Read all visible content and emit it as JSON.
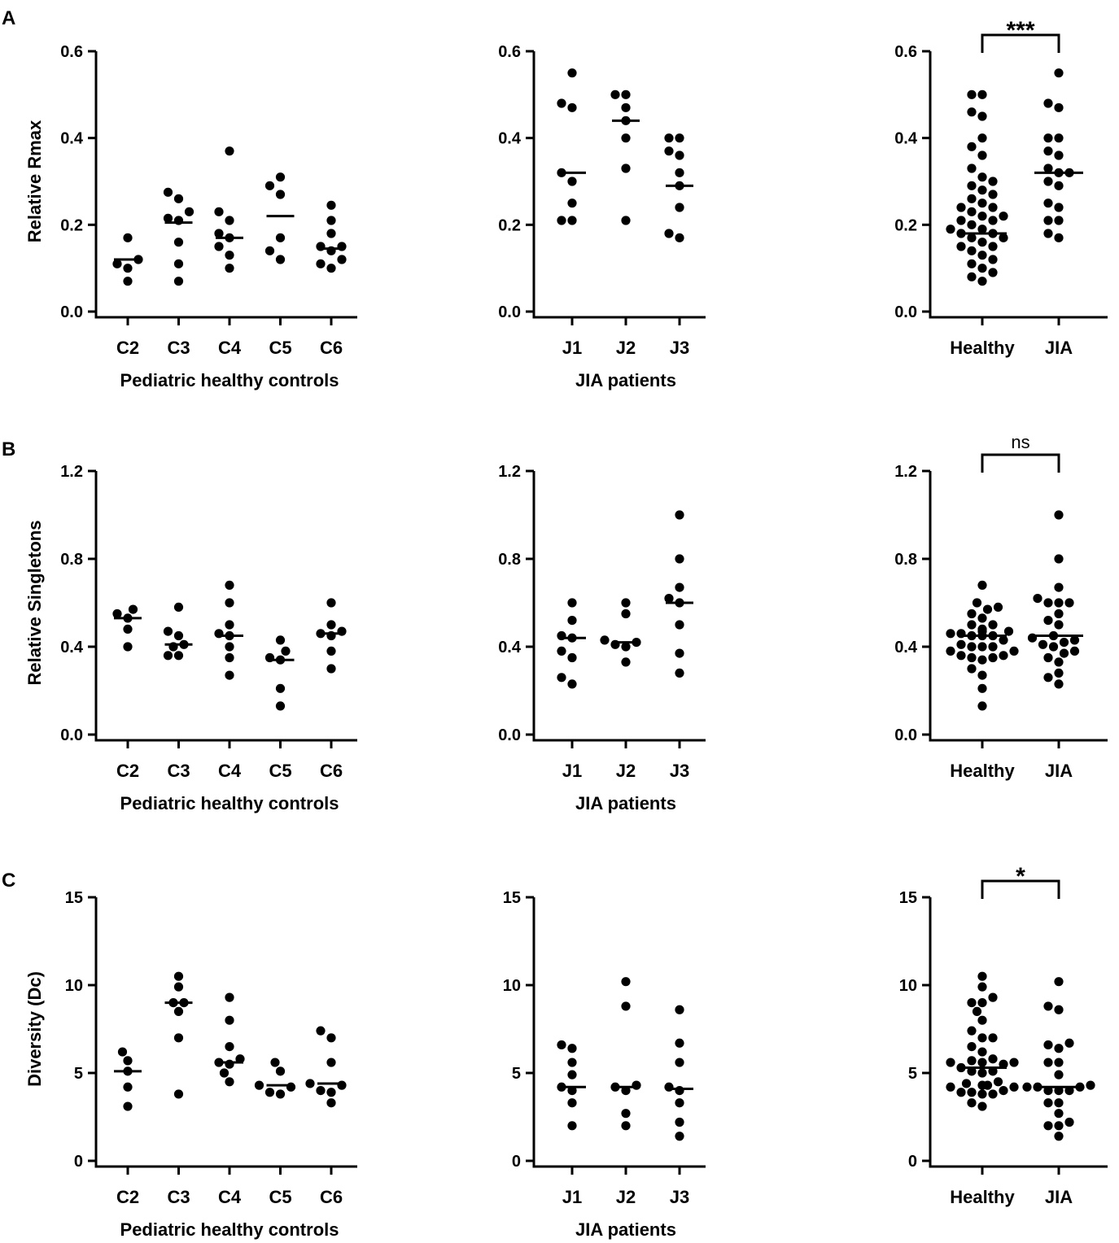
{
  "figure": {
    "panel_labels": [
      "A",
      "B",
      "C"
    ]
  },
  "chart_data": [
    {
      "id": "A1",
      "row": 0,
      "col": 0,
      "type": "scatter",
      "ylabel": "Relative Rmax",
      "xlabel": "Pediatric healthy controls",
      "ylim": [
        0,
        0.6
      ],
      "yticks": [
        0.0,
        0.2,
        0.4,
        0.6
      ],
      "ytick_labels": [
        "0.0",
        "0.2",
        "0.4",
        "0.6"
      ],
      "categories": [
        "C2",
        "C3",
        "C4",
        "C5",
        "C6"
      ],
      "groups": [
        {
          "name": "C2",
          "points": [
            0.17,
            0.12,
            0.11,
            0.1,
            0.07
          ],
          "median": 0.12
        },
        {
          "name": "C3",
          "points": [
            0.275,
            0.26,
            0.23,
            0.215,
            0.21,
            0.16,
            0.11,
            0.07
          ],
          "median": 0.205
        },
        {
          "name": "C4",
          "points": [
            0.37,
            0.23,
            0.21,
            0.18,
            0.17,
            0.15,
            0.13,
            0.1
          ],
          "median": 0.17
        },
        {
          "name": "C5",
          "points": [
            0.31,
            0.29,
            0.27,
            0.17,
            0.14,
            0.12
          ],
          "median": 0.22
        },
        {
          "name": "C6",
          "points": [
            0.245,
            0.21,
            0.18,
            0.15,
            0.15,
            0.14,
            0.12,
            0.11,
            0.1
          ],
          "median": 0.145
        }
      ]
    },
    {
      "id": "A2",
      "row": 0,
      "col": 1,
      "type": "scatter",
      "ylabel": "",
      "xlabel": "JIA patients",
      "ylim": [
        0,
        0.6
      ],
      "yticks": [
        0.0,
        0.2,
        0.4,
        0.6
      ],
      "ytick_labels": [
        "0.0",
        "0.2",
        "0.4",
        "0.6"
      ],
      "categories": [
        "J1",
        "J2",
        "J3"
      ],
      "groups": [
        {
          "name": "J1",
          "points": [
            0.55,
            0.48,
            0.47,
            0.32,
            0.3,
            0.25,
            0.21,
            0.21
          ],
          "median": 0.32
        },
        {
          "name": "J2",
          "points": [
            0.5,
            0.5,
            0.47,
            0.44,
            0.4,
            0.33,
            0.21
          ],
          "median": 0.44
        },
        {
          "name": "J3",
          "points": [
            0.4,
            0.4,
            0.37,
            0.36,
            0.32,
            0.29,
            0.24,
            0.18,
            0.17
          ],
          "median": 0.29
        }
      ]
    },
    {
      "id": "A3",
      "row": 0,
      "col": 2,
      "type": "scatter",
      "ylabel": "",
      "xlabel": "",
      "ylim": [
        0,
        0.6
      ],
      "yticks": [
        0.0,
        0.2,
        0.4,
        0.6
      ],
      "ytick_labels": [
        "0.0",
        "0.2",
        "0.4",
        "0.6"
      ],
      "categories": [
        "Healthy",
        "JIA"
      ],
      "groups": [
        {
          "name": "Healthy",
          "points": [
            0.5,
            0.5,
            0.46,
            0.45,
            0.4,
            0.38,
            0.36,
            0.33,
            0.31,
            0.3,
            0.29,
            0.28,
            0.27,
            0.26,
            0.25,
            0.24,
            0.24,
            0.23,
            0.22,
            0.22,
            0.21,
            0.21,
            0.2,
            0.19,
            0.19,
            0.18,
            0.18,
            0.17,
            0.17,
            0.16,
            0.15,
            0.15,
            0.14,
            0.13,
            0.12,
            0.11,
            0.1,
            0.09,
            0.08,
            0.07
          ],
          "median": 0.18
        },
        {
          "name": "JIA",
          "points": [
            0.55,
            0.48,
            0.47,
            0.4,
            0.4,
            0.37,
            0.36,
            0.33,
            0.32,
            0.32,
            0.3,
            0.29,
            0.25,
            0.24,
            0.21,
            0.21,
            0.18,
            0.17
          ],
          "median": 0.32
        }
      ],
      "significance": "***"
    },
    {
      "id": "B1",
      "row": 1,
      "col": 0,
      "type": "scatter",
      "ylabel": "Relative Singletons",
      "xlabel": "Pediatric healthy controls",
      "ylim": [
        0,
        1.2
      ],
      "yticks": [
        0.0,
        0.4,
        0.8,
        1.2
      ],
      "ytick_labels": [
        "0.0",
        "0.4",
        "0.8",
        "1.2"
      ],
      "categories": [
        "C2",
        "C3",
        "C4",
        "C5",
        "C6"
      ],
      "groups": [
        {
          "name": "C2",
          "points": [
            0.57,
            0.55,
            0.53,
            0.48,
            0.4
          ],
          "median": 0.53
        },
        {
          "name": "C3",
          "points": [
            0.58,
            0.47,
            0.45,
            0.41,
            0.4,
            0.36,
            0.36
          ],
          "median": 0.41
        },
        {
          "name": "C4",
          "points": [
            0.68,
            0.6,
            0.5,
            0.46,
            0.45,
            0.4,
            0.35,
            0.27
          ],
          "median": 0.45
        },
        {
          "name": "C5",
          "points": [
            0.43,
            0.38,
            0.35,
            0.34,
            0.21,
            0.13
          ],
          "median": 0.34
        },
        {
          "name": "C6",
          "points": [
            0.6,
            0.5,
            0.47,
            0.46,
            0.45,
            0.38,
            0.3
          ],
          "median": 0.46
        }
      ]
    },
    {
      "id": "B2",
      "row": 1,
      "col": 1,
      "type": "scatter",
      "ylabel": "",
      "xlabel": "JIA patients",
      "ylim": [
        0,
        1.2
      ],
      "yticks": [
        0.0,
        0.4,
        0.8,
        1.2
      ],
      "ytick_labels": [
        "0.0",
        "0.4",
        "0.8",
        "1.2"
      ],
      "categories": [
        "J1",
        "J2",
        "J3"
      ],
      "groups": [
        {
          "name": "J1",
          "points": [
            0.6,
            0.52,
            0.45,
            0.44,
            0.38,
            0.35,
            0.26,
            0.23
          ],
          "median": 0.44
        },
        {
          "name": "J2",
          "points": [
            0.6,
            0.55,
            0.43,
            0.42,
            0.41,
            0.4,
            0.33
          ],
          "median": 0.42
        },
        {
          "name": "J3",
          "points": [
            1.0,
            0.8,
            0.67,
            0.62,
            0.6,
            0.5,
            0.37,
            0.28
          ],
          "median": 0.6
        }
      ]
    },
    {
      "id": "B3",
      "row": 1,
      "col": 2,
      "type": "scatter",
      "ylabel": "",
      "xlabel": "",
      "ylim": [
        0,
        1.2
      ],
      "yticks": [
        0.0,
        0.4,
        0.8,
        1.2
      ],
      "ytick_labels": [
        "0.0",
        "0.4",
        "0.8",
        "1.2"
      ],
      "categories": [
        "Healthy",
        "JIA"
      ],
      "groups": [
        {
          "name": "Healthy",
          "points": [
            0.68,
            0.6,
            0.58,
            0.57,
            0.55,
            0.53,
            0.5,
            0.5,
            0.48,
            0.47,
            0.47,
            0.46,
            0.46,
            0.45,
            0.45,
            0.45,
            0.43,
            0.41,
            0.4,
            0.4,
            0.4,
            0.38,
            0.38,
            0.36,
            0.36,
            0.35,
            0.35,
            0.34,
            0.3,
            0.27,
            0.21,
            0.13
          ],
          "median": 0.45
        },
        {
          "name": "JIA",
          "points": [
            1.0,
            0.8,
            0.67,
            0.62,
            0.6,
            0.6,
            0.6,
            0.55,
            0.52,
            0.5,
            0.45,
            0.44,
            0.43,
            0.42,
            0.41,
            0.4,
            0.38,
            0.37,
            0.35,
            0.33,
            0.28,
            0.26,
            0.23
          ],
          "median": 0.45
        }
      ],
      "significance": "ns"
    },
    {
      "id": "C1",
      "row": 2,
      "col": 0,
      "type": "scatter",
      "ylabel": "Diversity (Dc)",
      "xlabel": "Pediatric healthy controls",
      "ylim": [
        0,
        15
      ],
      "yticks": [
        0,
        5,
        10,
        15
      ],
      "ytick_labels": [
        "0",
        "5",
        "10",
        "15"
      ],
      "categories": [
        "C2",
        "C3",
        "C4",
        "C5",
        "C6"
      ],
      "groups": [
        {
          "name": "C2",
          "points": [
            6.2,
            5.7,
            5.1,
            4.2,
            3.1
          ],
          "median": 5.1
        },
        {
          "name": "C3",
          "points": [
            10.5,
            9.9,
            9.0,
            9.0,
            8.5,
            7.0,
            3.8
          ],
          "median": 9.0
        },
        {
          "name": "C4",
          "points": [
            9.3,
            8.0,
            6.5,
            5.8,
            5.6,
            5.5,
            5.0,
            4.5
          ],
          "median": 5.6
        },
        {
          "name": "C5",
          "points": [
            5.6,
            5.1,
            4.3,
            4.2,
            3.9,
            3.8
          ],
          "median": 4.3
        },
        {
          "name": "C6",
          "points": [
            7.4,
            7.0,
            5.6,
            4.4,
            4.3,
            4.0,
            3.9,
            3.3
          ],
          "median": 4.4
        }
      ]
    },
    {
      "id": "C2",
      "row": 2,
      "col": 1,
      "type": "scatter",
      "ylabel": "",
      "xlabel": "JIA patients",
      "ylim": [
        0,
        15
      ],
      "yticks": [
        0,
        5,
        10,
        15
      ],
      "ytick_labels": [
        "0",
        "5",
        "10",
        "15"
      ],
      "categories": [
        "J1",
        "J2",
        "J3"
      ],
      "groups": [
        {
          "name": "J1",
          "points": [
            6.6,
            6.4,
            5.6,
            4.9,
            4.2,
            4.0,
            3.3,
            2.0
          ],
          "median": 4.2
        },
        {
          "name": "J2",
          "points": [
            10.2,
            8.8,
            4.3,
            4.2,
            4.0,
            2.7,
            2.0
          ],
          "median": 4.2
        },
        {
          "name": "J3",
          "points": [
            8.6,
            6.7,
            5.6,
            4.2,
            4.0,
            3.3,
            2.2,
            1.4
          ],
          "median": 4.1
        }
      ]
    },
    {
      "id": "C3",
      "row": 2,
      "col": 2,
      "type": "scatter",
      "ylabel": "",
      "xlabel": "",
      "ylim": [
        0,
        15
      ],
      "yticks": [
        0,
        5,
        10,
        15
      ],
      "ytick_labels": [
        "0",
        "5",
        "10",
        "15"
      ],
      "categories": [
        "Healthy",
        "JIA"
      ],
      "groups": [
        {
          "name": "Healthy",
          "points": [
            10.5,
            9.9,
            9.3,
            9.0,
            9.0,
            8.5,
            8.0,
            7.4,
            7.0,
            7.0,
            6.5,
            6.2,
            5.8,
            5.7,
            5.6,
            5.6,
            5.6,
            5.5,
            5.3,
            5.1,
            5.1,
            5.0,
            4.5,
            4.4,
            4.3,
            4.3,
            4.2,
            4.2,
            4.0,
            3.9,
            3.9,
            3.8,
            3.8,
            3.3,
            3.1
          ],
          "median": 5.3
        },
        {
          "name": "JIA",
          "points": [
            10.2,
            8.8,
            8.6,
            6.7,
            6.6,
            6.4,
            5.6,
            5.6,
            4.9,
            4.3,
            4.2,
            4.2,
            4.2,
            4.0,
            4.0,
            4.0,
            3.3,
            3.3,
            2.7,
            2.2,
            2.0,
            2.0,
            1.4
          ],
          "median": 4.2
        }
      ],
      "significance": "*"
    }
  ]
}
